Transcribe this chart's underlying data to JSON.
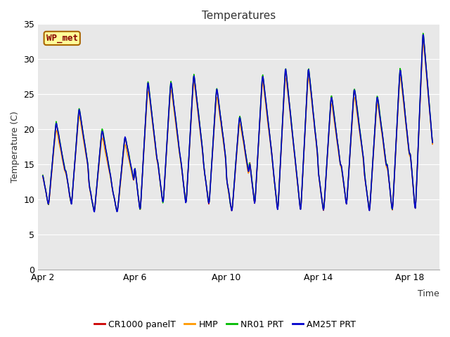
{
  "title": "Temperatures",
  "xlabel": "Time",
  "ylabel": "Temperature (C)",
  "ylim": [
    0,
    35
  ],
  "yticks": [
    0,
    5,
    10,
    15,
    20,
    25,
    30,
    35
  ],
  "xtick_days": [
    2,
    6,
    10,
    14,
    18
  ],
  "xtick_labels": [
    "Apr 2",
    "Apr 6",
    "Apr 10",
    "Apr 14",
    "Apr 18"
  ],
  "annotation_text": "WP_met",
  "annotation_box_color": "#FFFF99",
  "annotation_box_edgecolor": "#AA6600",
  "annotation_text_color": "#880000",
  "fig_bg_color": "#FFFFFF",
  "plot_bg_color": "#E8E8E8",
  "grid_color": "#FFFFFF",
  "series": [
    {
      "label": "CR1000 panelT",
      "color": "#CC0000",
      "lw": 1.0
    },
    {
      "label": "HMP",
      "color": "#FF9900",
      "lw": 1.0
    },
    {
      "label": "NR01 PRT",
      "color": "#00BB00",
      "lw": 1.0
    },
    {
      "label": "AM25T PRT",
      "color": "#0000CC",
      "lw": 1.2
    }
  ],
  "title_fontsize": 11,
  "axis_label_fontsize": 9,
  "tick_fontsize": 9,
  "legend_fontsize": 9,
  "day_mins": [
    9,
    9,
    8,
    8,
    8,
    9,
    9,
    9,
    8,
    9,
    8,
    8,
    8,
    9,
    8,
    8,
    8
  ],
  "day_maxs": [
    21,
    23,
    20,
    19,
    27,
    27,
    28,
    26,
    22,
    28,
    29,
    29,
    25,
    26,
    25,
    29,
    34
  ]
}
